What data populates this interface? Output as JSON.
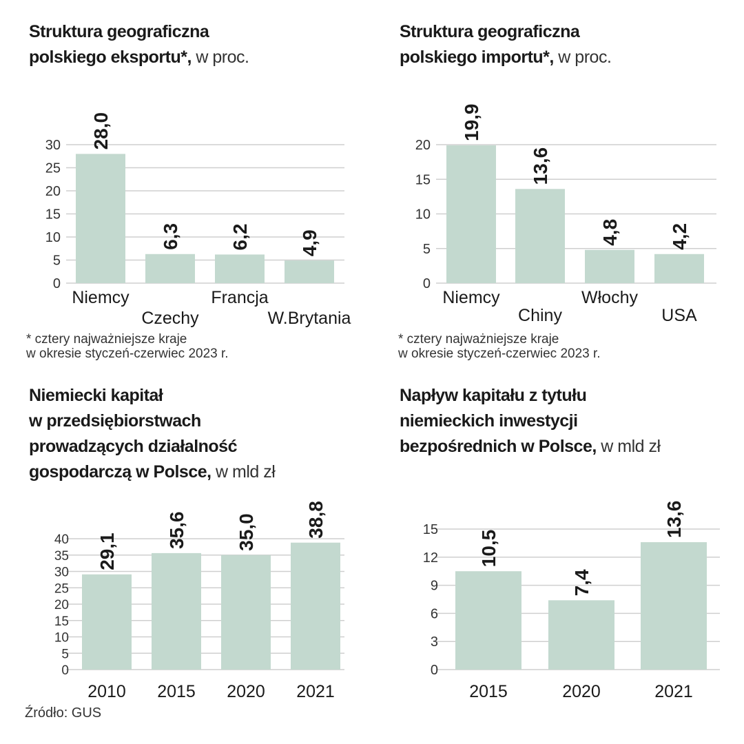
{
  "colors": {
    "bar": "#c3d9cf",
    "grid": "#cfcfcf",
    "text": "#1a1a1a"
  },
  "titles": [
    {
      "lines": [
        "Struktura geograficzna",
        "polskiego eksportu*,"
      ],
      "suffix": " w proc."
    },
    {
      "lines": [
        "Struktura geograficzna",
        "polskiego importu*,"
      ],
      "suffix": " w proc."
    },
    {
      "lines": [
        "Niemiecki kapitał",
        "w przedsiębiorstwach",
        "prowadzących działalność",
        "gospodarczą w Polsce,"
      ],
      "suffix": " w mld zł"
    },
    {
      "lines": [
        "Napływ kapitału z tytułu",
        "niemieckich inwestycji",
        "bezpośrednich w Polsce,"
      ],
      "suffix": " w mld zł"
    }
  ],
  "notes": [
    {
      "line1": "* cztery najważniejsze kraje",
      "line2": "w okresie styczeń-czerwiec 2023 r."
    },
    {
      "line1": "* cztery najważniejsze kraje",
      "line2": "w okresie styczeń-czerwiec 2023 r."
    }
  ],
  "source": "Źródło: GUS",
  "chart_data": [
    {
      "type": "bar",
      "title": "Struktura geograficzna polskiego eksportu*, w proc.",
      "categories": [
        "Niemcy",
        "Czechy",
        "Francja",
        "W.Brytania"
      ],
      "values": [
        28.0,
        6.3,
        6.2,
        4.9
      ],
      "value_labels": [
        "28,0",
        "6,3",
        "6,2",
        "4,9"
      ],
      "ylim": [
        0,
        30
      ],
      "yticks": [
        0,
        5,
        10,
        15,
        20,
        25,
        30
      ],
      "grid": true
    },
    {
      "type": "bar",
      "title": "Struktura geograficzna polskiego importu*, w proc.",
      "categories": [
        "Niemcy",
        "Chiny",
        "Włochy",
        "USA"
      ],
      "values": [
        19.9,
        13.6,
        4.8,
        4.2
      ],
      "value_labels": [
        "19,9",
        "13,6",
        "4,8",
        "4,2"
      ],
      "ylim": [
        0,
        20
      ],
      "yticks": [
        0,
        5,
        10,
        15,
        20
      ],
      "grid": true
    },
    {
      "type": "bar",
      "title": "Niemiecki kapitał w przedsiębiorstwach prowadzących działalność gospodarczą w Polsce, w mld zł",
      "categories": [
        "2010",
        "2015",
        "2020",
        "2021"
      ],
      "values": [
        29.1,
        35.6,
        35.0,
        38.8
      ],
      "value_labels": [
        "29,1",
        "35,6",
        "35,0",
        "38,8"
      ],
      "ylim": [
        0,
        40
      ],
      "yticks": [
        0,
        5,
        10,
        15,
        20,
        25,
        30,
        35,
        40
      ],
      "grid": true
    },
    {
      "type": "bar",
      "title": "Napływ kapitału z tytułu niemieckich inwestycji bezpośrednich w Polsce, w mld zł",
      "categories": [
        "2015",
        "2020",
        "2021"
      ],
      "values": [
        10.5,
        7.4,
        13.6
      ],
      "value_labels": [
        "10,5",
        "7,4",
        "13,6"
      ],
      "ylim": [
        0,
        15
      ],
      "yticks": [
        0,
        3,
        6,
        9,
        12,
        15
      ],
      "grid": true
    }
  ]
}
